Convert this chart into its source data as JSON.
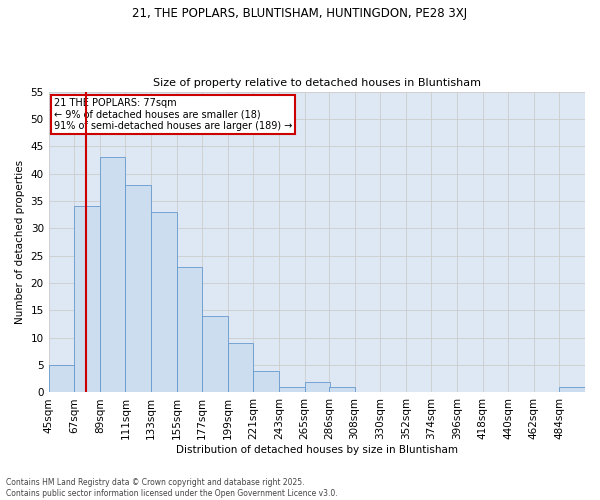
{
  "title1": "21, THE POPLARS, BLUNTISHAM, HUNTINGDON, PE28 3XJ",
  "title2": "Size of property relative to detached houses in Bluntisham",
  "xlabel": "Distribution of detached houses by size in Bluntisham",
  "ylabel": "Number of detached properties",
  "annotation_line1": "21 THE POPLARS: 77sqm",
  "annotation_line2": "← 9% of detached houses are smaller (18)",
  "annotation_line3": "91% of semi-detached houses are larger (189) →",
  "bar_color": "#ccddf0",
  "bar_edge_color": "#6699cc",
  "grid_color": "#cccccc",
  "bg_color": "#dde8f4",
  "redline_color": "#cc0000",
  "annotation_box_color": "#cc0000",
  "footer_line1": "Contains HM Land Registry data © Crown copyright and database right 2025.",
  "footer_line2": "Contains public sector information licensed under the Open Government Licence v3.0.",
  "bins": [
    45,
    67,
    89,
    111,
    133,
    155,
    177,
    199,
    221,
    243,
    265,
    286,
    308,
    330,
    352,
    374,
    396,
    418,
    440,
    462,
    484
  ],
  "counts": [
    5,
    34,
    43,
    38,
    33,
    23,
    14,
    9,
    4,
    1,
    2,
    1,
    0,
    0,
    0,
    0,
    0,
    0,
    0,
    0,
    1
  ],
  "ylim": [
    0,
    55
  ],
  "yticks": [
    0,
    5,
    10,
    15,
    20,
    25,
    30,
    35,
    40,
    45,
    50,
    55
  ],
  "redline_x": 77
}
